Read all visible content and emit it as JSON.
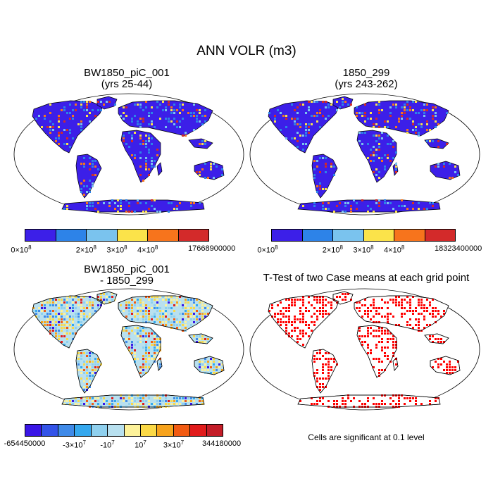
{
  "figure": {
    "title": "ANN VOLR (m3)"
  },
  "panels": [
    {
      "id": "case1",
      "title_line1": "BW1850_piC_001",
      "title_line2": "(yrs 25-44)",
      "colors": [
        "#3c1fe8",
        "#2d83e8",
        "#7ac3ee",
        "#fbe34a",
        "#f7741c",
        "#d32a2a"
      ],
      "labels": [
        {
          "text": "0×10",
          "sup": "8"
        },
        {
          "text": "2×10",
          "sup": "8"
        },
        {
          "text": "3×10",
          "sup": "8"
        },
        {
          "text": "4×10",
          "sup": "8"
        },
        {
          "text": "17668900000",
          "sup": ""
        }
      ]
    },
    {
      "id": "case2",
      "title_line1": "1850_299",
      "title_line2": "(yrs 243-262)",
      "colors": [
        "#3c1fe8",
        "#2d83e8",
        "#7ac3ee",
        "#fbe34a",
        "#f7741c",
        "#d32a2a"
      ],
      "labels": [
        {
          "text": "0×10",
          "sup": "8"
        },
        {
          "text": "2×10",
          "sup": "8"
        },
        {
          "text": "3×10",
          "sup": "8"
        },
        {
          "text": "4×10",
          "sup": "8"
        },
        {
          "text": "18323400000",
          "sup": ""
        }
      ]
    },
    {
      "id": "diff",
      "title_line1": "BW1850_piC_001",
      "title_line2": "- 1850_299",
      "colors": [
        "#3a16e6",
        "#3353e8",
        "#3f8ae8",
        "#35a8ee",
        "#8fd0ee",
        "#b8e0ef",
        "#fdf29a",
        "#fbd946",
        "#f7a31c",
        "#f25b12",
        "#e11b1b",
        "#c41d28"
      ],
      "labels": [
        {
          "text": "-654450000",
          "sup": ""
        },
        {
          "text": "-3×10",
          "sup": "7"
        },
        {
          "text": "-10",
          "sup": "7"
        },
        {
          "text": "10",
          "sup": "7"
        },
        {
          "text": "3×10",
          "sup": "7"
        },
        {
          "text": "344180000",
          "sup": ""
        }
      ]
    }
  ],
  "ttest": {
    "title": "T-Test of two Case means at each grid point",
    "note": "Cells are significant at 0.1 level",
    "color": "#ff0000"
  }
}
